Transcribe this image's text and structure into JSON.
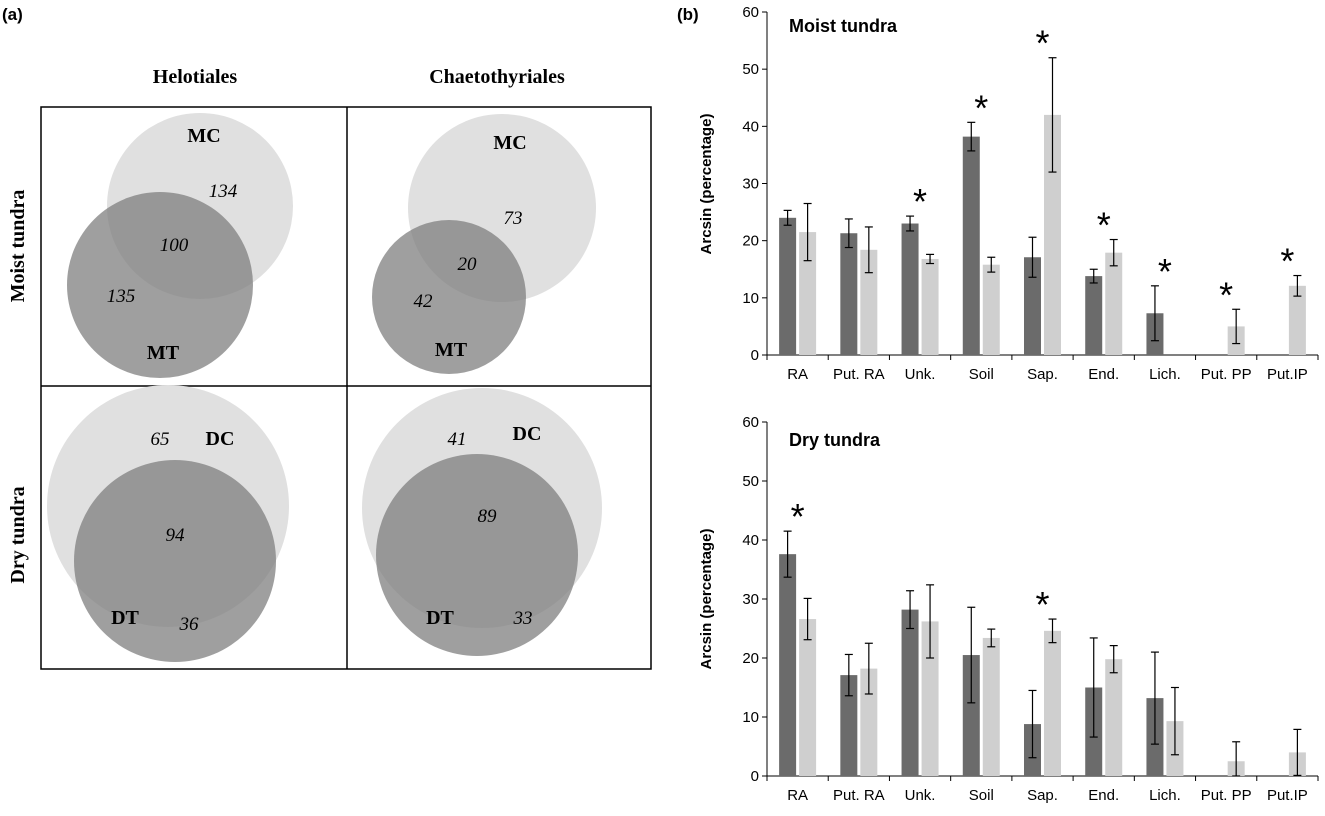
{
  "panel_a": {
    "label": "(a)",
    "col_headers": [
      "Helotiales",
      "Chaetothyriales"
    ],
    "row_headers": [
      "Moist tundra",
      "Dry tundra"
    ],
    "venns": [
      {
        "top_label": "MC",
        "bottom_label": "MT",
        "top_only": "134",
        "shared": "100",
        "bottom_only": "135"
      },
      {
        "top_label": "MC",
        "bottom_label": "MT",
        "top_only": "73",
        "shared": "20",
        "bottom_only": "42"
      },
      {
        "top_label": "DC",
        "bottom_label": "DT",
        "top_only": "65",
        "shared": "94",
        "bottom_only": "36"
      },
      {
        "top_label": "DC",
        "bottom_label": "DT",
        "top_only": "41",
        "shared": "89",
        "bottom_only": "33"
      }
    ]
  },
  "panel_b": {
    "label": "(b)"
  },
  "colors": {
    "dark_bar": "#6b6b6b",
    "light_bar": "#cfcfcf",
    "venn_light": "#e0e0e0",
    "venn_dark": "#9a9a9a",
    "axis": "#000000"
  },
  "chart_data": [
    {
      "type": "bar",
      "title": "Moist tundra",
      "ylabel": "Arcsin (percentage)",
      "ylim": [
        0,
        60
      ],
      "yticks": [
        0,
        10,
        20,
        30,
        40,
        50,
        60
      ],
      "categories": [
        "RA",
        "Put. RA",
        "Unk.",
        "Soil",
        "Sap.",
        "End.",
        "Lich.",
        "Put. PP",
        "Put.IP"
      ],
      "series": [
        {
          "values": [
            24,
            21.3,
            23,
            38.2,
            17.1,
            13.8,
            7.3,
            0,
            0
          ],
          "errors": [
            1.3,
            2.5,
            1.3,
            2.5,
            3.5,
            1.2,
            4.8,
            0,
            0
          ]
        },
        {
          "values": [
            21.5,
            18.4,
            16.8,
            15.8,
            42,
            17.9,
            0,
            5,
            12.1
          ],
          "errors": [
            5,
            4,
            0.8,
            1.3,
            10,
            2.3,
            0,
            3,
            1.8
          ]
        }
      ],
      "significant": [
        false,
        false,
        true,
        true,
        true,
        true,
        true,
        true,
        true
      ]
    },
    {
      "type": "bar",
      "title": "Dry tundra",
      "ylabel": "Arcsin (percentage)",
      "ylim": [
        0,
        60
      ],
      "yticks": [
        0,
        10,
        20,
        30,
        40,
        50,
        60
      ],
      "categories": [
        "RA",
        "Put. RA",
        "Unk.",
        "Soil",
        "Sap.",
        "End.",
        "Lich.",
        "Put. PP",
        "Put.IP"
      ],
      "series": [
        {
          "values": [
            37.6,
            17.1,
            28.2,
            20.5,
            8.8,
            15,
            13.2,
            0,
            0
          ],
          "errors": [
            3.9,
            3.5,
            3.2,
            8.1,
            5.7,
            8.4,
            7.8,
            0,
            0
          ]
        },
        {
          "values": [
            26.6,
            18.2,
            26.2,
            23.4,
            24.6,
            19.8,
            9.3,
            2.5,
            4
          ],
          "errors": [
            3.5,
            4.3,
            6.2,
            1.5,
            2,
            2.3,
            5.7,
            3.3,
            3.9
          ]
        }
      ],
      "significant": [
        true,
        false,
        false,
        false,
        true,
        false,
        false,
        false,
        false
      ]
    }
  ]
}
